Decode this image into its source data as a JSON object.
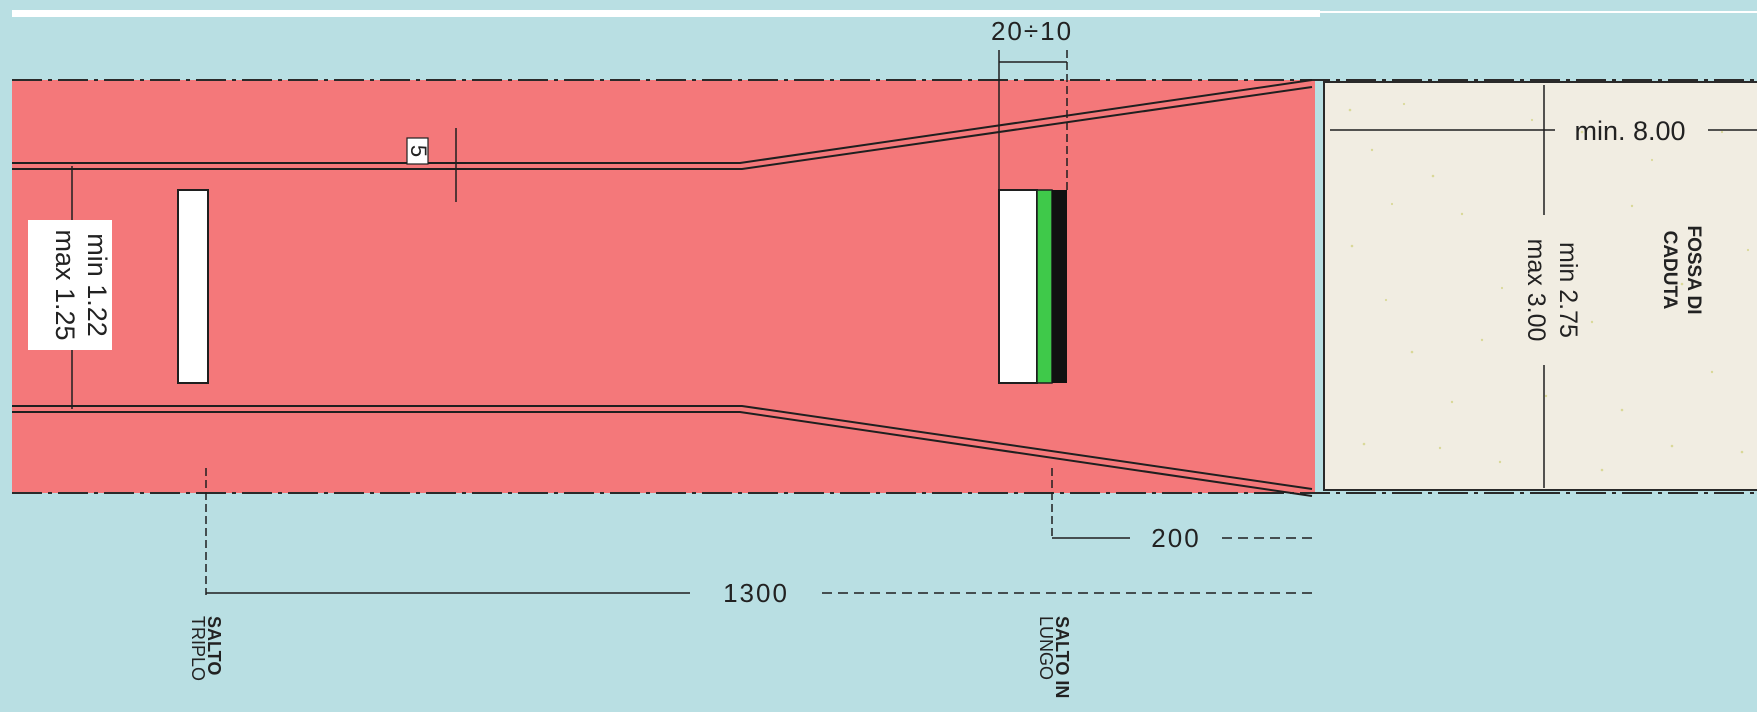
{
  "labels": {
    "board_spacing": "20÷10",
    "line_width": "5",
    "runway_width": [
      "min 1.22",
      "max 1.25"
    ],
    "pit_length": "min. 8.00",
    "pit_width": [
      "min 2.75",
      "max 3.00"
    ],
    "pit_name": [
      "FOSSA DI",
      "CADUTA"
    ],
    "long_jump_distance": "200",
    "triple_jump_distance": "1300",
    "triple_jump_board": [
      "SALTO",
      "TRIPLO"
    ],
    "long_jump_board": [
      "SALTO IN",
      "LUNGO"
    ]
  },
  "colors": {
    "background": "#b9dfe3",
    "runway": "#f4787a",
    "pit": "#f1ede2",
    "board_white": "#ffffff",
    "plasticine_green": "#3fc94a",
    "board_black": "#111111",
    "line": "#1f1f1f"
  }
}
